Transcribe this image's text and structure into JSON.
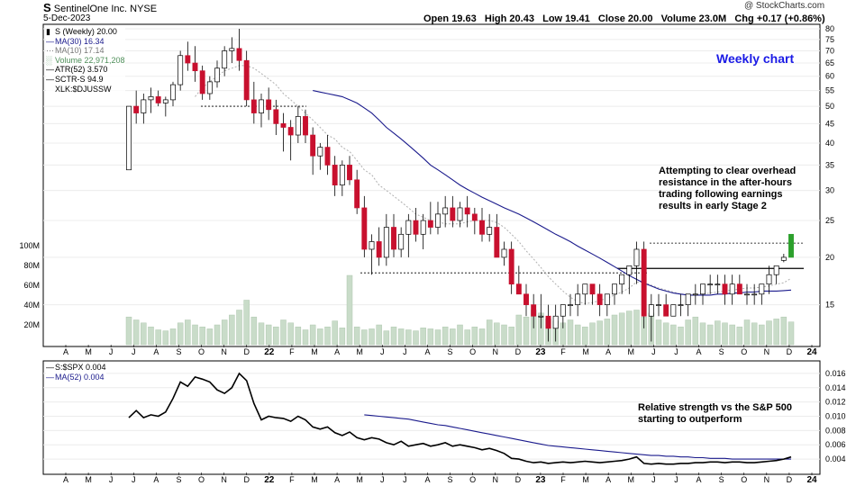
{
  "header": {
    "symbol": "S",
    "company": "SentinelOne Inc.",
    "exchange": "NYSE",
    "date": "5-Dec-2023",
    "watermark": "@ StockCharts.com",
    "open_label": "Open",
    "open": "19.63",
    "high_label": "High",
    "high": "20.43",
    "low_label": "Low",
    "low": "19.41",
    "close_label": "Close",
    "close": "20.00",
    "volume_label": "Volume",
    "volume": "23.0M",
    "chg_label": "Chg",
    "chg": "+0.17 (+0.86%)"
  },
  "legend": [
    {
      "text": "S (Weekly) 20.00",
      "color": "#000000",
      "icon": "price-bar-icon"
    },
    {
      "text": "MA(30) 16.34",
      "color": "#1a1a8c",
      "icon": "line-icon"
    },
    {
      "text": "MA(10) 17.14",
      "color": "#a0a0a0",
      "icon": "dotted-line-icon"
    },
    {
      "text": "Volume 22,971,208",
      "color": "#4f8f5a",
      "icon": "volume-bars-icon"
    },
    {
      "text": "ATR(52) 3.570",
      "color": "#000000",
      "icon": "line-icon"
    },
    {
      "text": "SCTR-S 94.9",
      "color": "#000000",
      "icon": "line-icon"
    },
    {
      "text": "XLK:$DJUSSW",
      "color": "#000000",
      "icon": ""
    }
  ],
  "rs_legend": [
    {
      "text": "S:$SPX 0.004",
      "color": "#000000",
      "icon": "line-icon"
    },
    {
      "text": "MA(52) 0.004",
      "color": "#1a1a8c",
      "icon": "line-icon"
    }
  ],
  "annotations": {
    "weekly": "Weekly chart",
    "price_note": "Attempting to clear overhead resistance in the after-hours trading following earnings results in early Stage 2",
    "rs_note": "Relative strength vs the S&P 500 starting to outperform"
  },
  "colors": {
    "up": "#ffffff",
    "down": "#c8102e",
    "last": "#2ca02c",
    "ma30": "#1a1a8c",
    "ma10": "#b0b0b0",
    "volume": "#c9dcc9"
  },
  "chart_data": [
    {
      "type": "candlestick",
      "title": "S (Weekly)",
      "x_tick_labels": [
        "A",
        "M",
        "J",
        "J",
        "A",
        "S",
        "O",
        "N",
        "D",
        "22",
        "F",
        "M",
        "A",
        "M",
        "J",
        "J",
        "A",
        "S",
        "O",
        "N",
        "D",
        "23",
        "F",
        "M",
        "A",
        "M",
        "J",
        "J",
        "A",
        "S",
        "O",
        "N",
        "D",
        "24"
      ],
      "y_tick_labels": [
        "80",
        "75",
        "70",
        "65",
        "60",
        "55",
        "50",
        "45",
        "40",
        "35",
        "30",
        "25",
        "20",
        "15"
      ],
      "y_scale": "log",
      "ylim": [
        12.5,
        80
      ],
      "ohlc": [
        [
          34,
          50,
          34,
          50
        ],
        [
          50,
          55,
          45,
          48
        ],
        [
          48,
          54,
          45,
          52
        ],
        [
          52,
          56,
          48,
          53
        ],
        [
          53,
          55,
          50,
          51
        ],
        [
          51,
          53,
          47,
          52
        ],
        [
          52,
          58,
          50,
          57
        ],
        [
          57,
          70,
          55,
          68
        ],
        [
          68,
          74,
          62,
          65
        ],
        [
          65,
          72,
          58,
          62
        ],
        [
          62,
          64,
          52,
          54
        ],
        [
          54,
          60,
          52,
          58
        ],
        [
          58,
          66,
          56,
          63
        ],
        [
          63,
          72,
          60,
          70
        ],
        [
          70,
          76,
          65,
          71
        ],
        [
          71,
          80,
          62,
          66
        ],
        [
          66,
          70,
          50,
          52
        ],
        [
          52,
          58,
          45,
          48
        ],
        [
          48,
          54,
          44,
          52
        ],
        [
          52,
          56,
          46,
          49
        ],
        [
          49,
          52,
          42,
          45
        ],
        [
          45,
          48,
          38,
          44
        ],
        [
          44,
          46,
          36,
          42
        ],
        [
          42,
          50,
          40,
          47
        ],
        [
          47,
          49,
          40,
          42
        ],
        [
          42,
          44,
          33,
          37
        ],
        [
          37,
          40,
          34,
          39
        ],
        [
          39,
          42,
          33,
          35
        ],
        [
          35,
          37,
          29,
          31
        ],
        [
          31,
          36,
          29,
          35
        ],
        [
          35,
          37,
          31,
          32
        ],
        [
          32,
          34,
          26,
          27
        ],
        [
          27,
          29,
          20,
          21
        ],
        [
          21,
          23,
          18,
          22
        ],
        [
          22,
          24,
          19,
          20
        ],
        [
          20,
          26,
          19,
          24
        ],
        [
          24,
          26,
          20,
          21
        ],
        [
          21,
          24,
          20,
          23
        ],
        [
          23,
          26,
          20,
          25
        ],
        [
          25,
          27,
          22,
          23
        ],
        [
          23,
          26,
          21,
          25
        ],
        [
          25,
          28,
          23,
          24
        ],
        [
          24,
          28,
          23,
          26
        ],
        [
          26,
          29,
          24,
          27
        ],
        [
          27,
          29,
          24,
          25
        ],
        [
          25,
          28,
          24,
          27
        ],
        [
          27,
          29,
          24,
          26
        ],
        [
          26,
          27,
          23,
          25
        ],
        [
          25,
          27,
          22,
          23
        ],
        [
          23,
          26,
          22,
          24
        ],
        [
          24,
          26,
          20,
          20
        ],
        [
          20,
          22,
          19,
          21
        ],
        [
          21,
          22,
          16,
          17
        ],
        [
          17,
          19,
          16,
          16
        ],
        [
          16,
          17,
          14,
          15
        ],
        [
          15,
          16,
          13,
          14
        ],
        [
          14,
          16,
          13,
          14
        ],
        [
          14,
          15,
          12,
          13
        ],
        [
          13,
          15,
          12,
          14
        ],
        [
          14,
          15,
          13,
          15
        ],
        [
          15,
          16,
          14,
          15
        ],
        [
          15,
          17,
          14,
          16
        ],
        [
          16,
          17,
          15,
          17
        ],
        [
          17,
          17,
          15,
          16
        ],
        [
          16,
          17,
          14,
          15
        ],
        [
          15,
          16,
          14,
          16
        ],
        [
          16,
          17,
          15,
          17
        ],
        [
          17,
          18,
          16,
          18
        ],
        [
          18,
          19,
          16,
          19
        ],
        [
          19,
          22,
          17,
          21
        ],
        [
          21,
          22,
          13,
          14
        ],
        [
          14,
          16,
          12,
          15
        ],
        [
          15,
          16,
          14,
          15
        ],
        [
          15,
          16,
          14,
          14
        ],
        [
          14,
          15,
          14,
          15
        ],
        [
          15,
          16,
          14,
          15
        ],
        [
          15,
          16,
          14,
          16
        ],
        [
          16,
          17,
          15,
          16
        ],
        [
          16,
          17,
          15,
          17
        ],
        [
          17,
          18,
          16,
          17
        ],
        [
          17,
          18,
          16,
          17
        ],
        [
          17,
          18,
          15,
          16
        ],
        [
          16,
          18,
          15,
          17
        ],
        [
          17,
          18,
          16,
          16
        ],
        [
          16,
          17,
          15,
          16
        ],
        [
          16,
          17,
          15,
          16
        ],
        [
          16,
          17,
          15,
          17
        ],
        [
          17,
          19,
          16,
          18
        ],
        [
          18,
          19,
          17,
          19
        ],
        [
          19.63,
          20.43,
          19.41,
          20.0
        ],
        [
          20,
          23,
          20,
          23
        ]
      ],
      "ma30": [
        null,
        null,
        null,
        null,
        null,
        null,
        null,
        null,
        null,
        null,
        null,
        null,
        null,
        null,
        null,
        null,
        null,
        null,
        null,
        null,
        null,
        null,
        null,
        null,
        null,
        55,
        54.5,
        54,
        53.5,
        53,
        52,
        51,
        49.5,
        48,
        46,
        44,
        42.5,
        41,
        39.5,
        38,
        36.5,
        35,
        34,
        33,
        32,
        31,
        30.2,
        29.5,
        28.8,
        28.2,
        27.6,
        27,
        26.5,
        26,
        25.4,
        24.8,
        24.2,
        23.6,
        23,
        22.5,
        22,
        21.4,
        20.9,
        20.4,
        19.9,
        19.4,
        18.9,
        18.4,
        17.9,
        17.5,
        17.1,
        16.8,
        16.5,
        16.3,
        16.1,
        16,
        15.9,
        15.9,
        15.9,
        15.9,
        16,
        16,
        16.1,
        16.1,
        16.2,
        16.2,
        16.3,
        16.3,
        16.3,
        16.34,
        16.4
      ],
      "ma10": [
        null,
        null,
        null,
        null,
        null,
        null,
        null,
        null,
        null,
        53,
        56,
        58,
        60,
        62,
        63,
        64,
        64,
        63,
        61,
        59,
        57,
        54,
        52,
        50,
        48,
        46,
        44,
        42,
        41,
        39,
        38,
        36,
        34,
        33,
        31,
        30,
        29,
        28,
        27,
        26,
        25.5,
        25,
        24.8,
        24.5,
        24.5,
        24.5,
        24.8,
        25,
        25,
        25,
        24.7,
        24,
        23,
        22,
        20.8,
        19.8,
        18.8,
        17.8,
        17,
        16.3,
        15.7,
        15.3,
        15.1,
        15.2,
        15.4,
        15.6,
        15.9,
        16.2,
        16.6,
        17.2,
        17.2,
        16.9,
        16.6,
        16.4,
        16.2,
        16,
        16,
        16,
        16,
        16.1,
        16.2,
        16.3,
        16.4,
        16.5,
        16.6,
        16.6,
        16.7,
        16.8,
        17,
        17.14,
        17.6
      ],
      "volume_millions": [
        28,
        25,
        22,
        18,
        15,
        14,
        16,
        22,
        25,
        20,
        18,
        16,
        20,
        25,
        30,
        35,
        45,
        28,
        22,
        20,
        18,
        25,
        22,
        18,
        15,
        20,
        16,
        18,
        24,
        17,
        70,
        18,
        15,
        16,
        20,
        14,
        18,
        16,
        15,
        14,
        17,
        16,
        15,
        18,
        16,
        20,
        15,
        18,
        16,
        25,
        22,
        20,
        18,
        30,
        28,
        35,
        32,
        26,
        24,
        22,
        25,
        20,
        18,
        22,
        24,
        26,
        30,
        32,
        34,
        35,
        28,
        32,
        25,
        22,
        20,
        18,
        25,
        28,
        22,
        20,
        24,
        22,
        20,
        18,
        25,
        22,
        20,
        24,
        26,
        28,
        23
      ],
      "volume_axis_labels": [
        "100M",
        "80M",
        "60M",
        "40M",
        "20M"
      ],
      "support_lines": [
        {
          "y": 50,
          "style": "dotted"
        },
        {
          "y": 18.2,
          "style": "dotted"
        },
        {
          "y": 21.8,
          "style": "dotted"
        },
        {
          "y": 18.7,
          "style": "solid"
        }
      ]
    },
    {
      "type": "line",
      "title": "S:$SPX",
      "series": [
        {
          "name": "S:$SPX",
          "values": [
            0.0098,
            0.0108,
            0.0098,
            0.0102,
            0.01,
            0.0106,
            0.0125,
            0.0148,
            0.0142,
            0.0155,
            0.0152,
            0.0148,
            0.0137,
            0.0132,
            0.014,
            0.016,
            0.015,
            0.0118,
            0.0095,
            0.01,
            0.0098,
            0.0097,
            0.0093,
            0.01,
            0.0095,
            0.0085,
            0.0082,
            0.0085,
            0.0077,
            0.0073,
            0.0078,
            0.007,
            0.0067,
            0.007,
            0.0068,
            0.0063,
            0.006,
            0.0065,
            0.0058,
            0.006,
            0.0062,
            0.0058,
            0.006,
            0.0063,
            0.0058,
            0.006,
            0.0058,
            0.0056,
            0.0053,
            0.0055,
            0.0052,
            0.0048,
            0.0041,
            0.004,
            0.0037,
            0.0035,
            0.0036,
            0.0034,
            0.0035,
            0.0036,
            0.0035,
            0.0036,
            0.0037,
            0.0036,
            0.0035,
            0.0036,
            0.0037,
            0.0038,
            0.004,
            0.0043,
            0.0034,
            0.0033,
            0.0034,
            0.0033,
            0.0033,
            0.0034,
            0.0034,
            0.0035,
            0.0035,
            0.0036,
            0.0036,
            0.0035,
            0.0036,
            0.0036,
            0.0035,
            0.0035,
            0.0036,
            0.0037,
            0.0038,
            0.004,
            0.0043
          ]
        },
        {
          "name": "MA(52)",
          "values": [
            null,
            null,
            null,
            null,
            null,
            null,
            null,
            null,
            null,
            null,
            null,
            null,
            null,
            null,
            null,
            null,
            null,
            null,
            null,
            null,
            null,
            null,
            null,
            null,
            null,
            null,
            null,
            null,
            null,
            null,
            null,
            null,
            0.0102,
            0.0101,
            0.01,
            0.0099,
            0.0098,
            0.0097,
            0.0096,
            0.0094,
            0.0092,
            0.009,
            0.0088,
            0.0087,
            0.0085,
            0.0083,
            0.0081,
            0.0079,
            0.0077,
            0.0075,
            0.0073,
            0.0071,
            0.0069,
            0.0067,
            0.0065,
            0.0063,
            0.0061,
            0.0059,
            0.0058,
            0.0057,
            0.0056,
            0.0055,
            0.0054,
            0.0053,
            0.0052,
            0.0051,
            0.005,
            0.0049,
            0.0048,
            0.0047,
            0.0046,
            0.0045,
            0.0045,
            0.0044,
            0.0044,
            0.0043,
            0.0043,
            0.0042,
            0.0042,
            0.0041,
            0.0041,
            0.0041,
            0.004,
            0.004,
            0.004,
            0.004,
            0.004,
            0.004,
            0.004,
            0.004,
            0.004
          ]
        }
      ],
      "y_tick_labels": [
        "0.016",
        "0.014",
        "0.012",
        "0.010",
        "0.008",
        "0.006",
        "0.004"
      ],
      "ylim": [
        0.0025,
        0.017
      ]
    }
  ]
}
